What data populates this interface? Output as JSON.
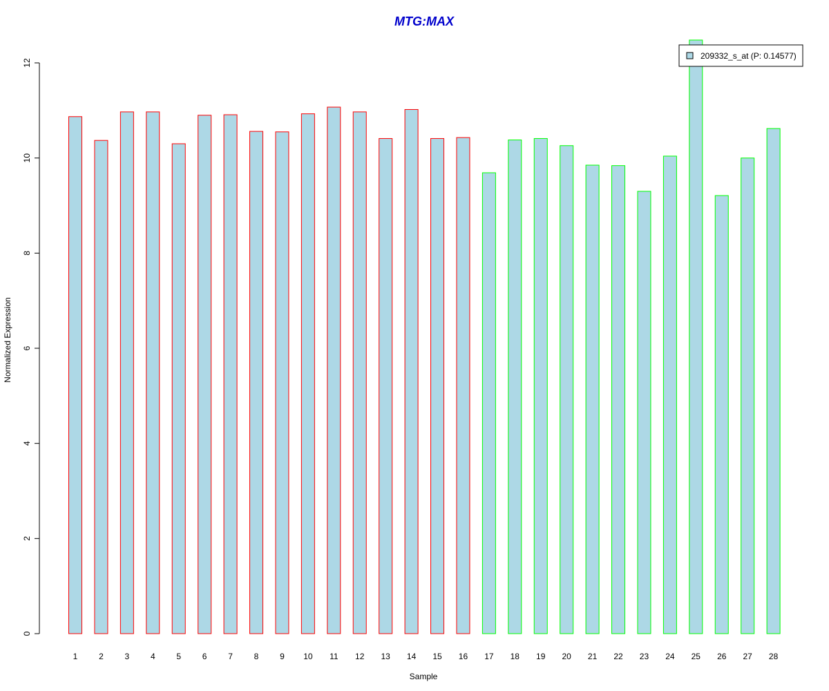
{
  "chart_data": {
    "type": "bar",
    "title": "MTG:MAX",
    "xlabel": "Sample",
    "ylabel": "Normalized Expression",
    "ylim": [
      0,
      12
    ],
    "yticks": [
      "0",
      "2",
      "4",
      "6",
      "8",
      "10",
      "12"
    ],
    "categories": [
      "1",
      "2",
      "3",
      "4",
      "5",
      "6",
      "7",
      "8",
      "9",
      "10",
      "11",
      "12",
      "13",
      "14",
      "15",
      "16",
      "17",
      "18",
      "19",
      "20",
      "21",
      "22",
      "23",
      "24",
      "25",
      "26",
      "27",
      "28"
    ],
    "series": [
      {
        "name": "209332_s_at (P: 0.14577)",
        "values": [
          10.87,
          10.37,
          10.97,
          10.97,
          10.3,
          10.9,
          10.91,
          10.56,
          10.55,
          10.93,
          11.07,
          10.97,
          10.41,
          11.02,
          10.41,
          10.43,
          9.69,
          10.38,
          10.41,
          10.26,
          9.85,
          9.84,
          9.3,
          10.04,
          12.48,
          9.21,
          10.0,
          10.62
        ],
        "group": [
          "a",
          "a",
          "a",
          "a",
          "a",
          "a",
          "a",
          "a",
          "a",
          "a",
          "a",
          "a",
          "a",
          "a",
          "a",
          "a",
          "b",
          "b",
          "b",
          "b",
          "b",
          "b",
          "b",
          "b",
          "b",
          "b",
          "b",
          "b"
        ]
      }
    ],
    "grid": false,
    "legend_position": "top-right",
    "colors": {
      "fill": "#add8e6",
      "group_a_border": "#ff0000",
      "group_b_border": "#00ff00",
      "title": "#0000cc"
    }
  }
}
